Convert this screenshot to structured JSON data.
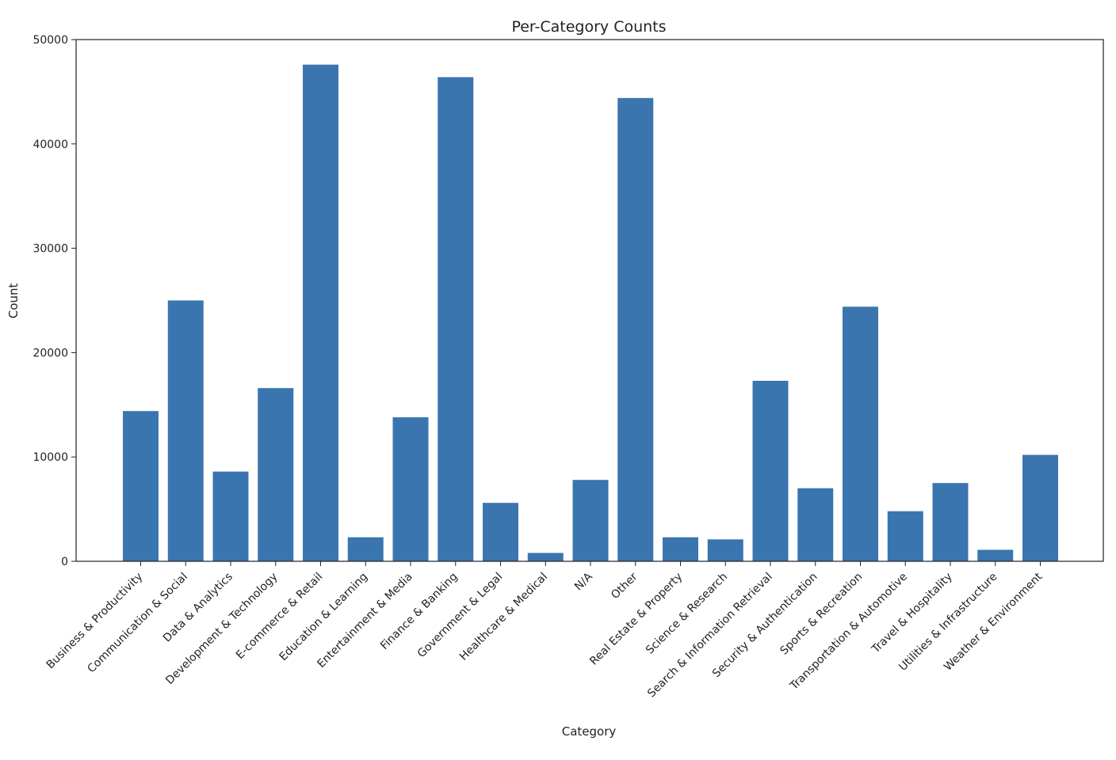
{
  "chart_data": {
    "type": "bar",
    "title": "Per-Category Counts",
    "xlabel": "Category",
    "ylabel": "Count",
    "ylim": [
      0,
      50000
    ],
    "yticks": [
      "0",
      "10000",
      "20000",
      "30000",
      "40000",
      "50000"
    ],
    "grid": false,
    "bar_color": "#3b75af",
    "categories": [
      "Business & Productivity",
      "Communication & Social",
      "Data & Analytics",
      "Development & Technology",
      "E-commerce & Retail",
      "Education & Learning",
      "Entertainment & Media",
      "Finance & Banking",
      "Government & Legal",
      "Healthcare & Medical",
      "N/A",
      "Other",
      "Real Estate & Property",
      "Science & Research",
      "Search & Information Retrieval",
      "Security & Authentication",
      "Sports & Recreation",
      "Transportation & Automotive",
      "Travel & Hospitality",
      "Utilities & Infrastructure",
      "Weather & Environment"
    ],
    "values": [
      14400,
      25000,
      8600,
      16600,
      47600,
      2300,
      13800,
      46400,
      5600,
      800,
      7800,
      44400,
      2300,
      2100,
      17300,
      7000,
      24400,
      4800,
      7500,
      1100,
      10200
    ]
  }
}
